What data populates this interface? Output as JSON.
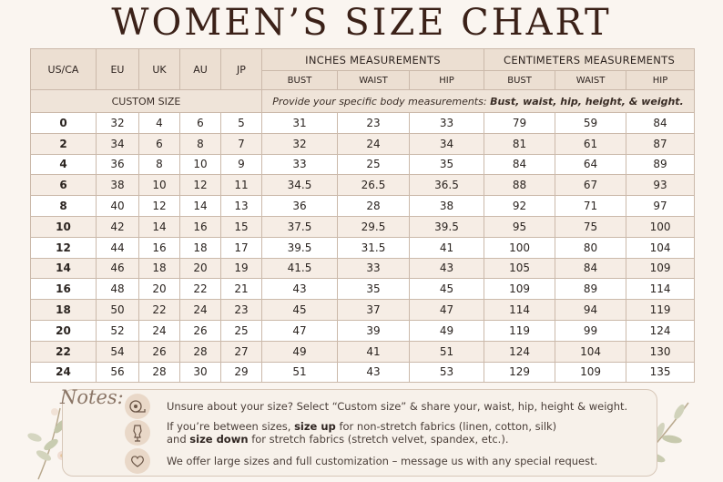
{
  "title": "WOMEN’S SIZE CHART",
  "headers": {
    "us": "US/CA",
    "eu": "EU",
    "uk": "UK",
    "au": "AU",
    "jp": "JP",
    "inches": "INCHES MEASUREMENTS",
    "cm": "CENTIMETERS MEASUREMENTS",
    "bust": "BUST",
    "waist": "WAIST",
    "hip": "HIP"
  },
  "custom": {
    "label": "CUSTOM SIZE",
    "note": "Provide your specific body measurements:",
    "note_bold": "Bust, waist, hip, height, & weight."
  },
  "rows": [
    {
      "us": "0",
      "eu": "32",
      "uk": "4",
      "au": "6",
      "jp": "5",
      "in_bust": "31",
      "in_waist": "23",
      "in_hip": "33",
      "cm_bust": "79",
      "cm_waist": "59",
      "cm_hip": "84"
    },
    {
      "us": "2",
      "eu": "34",
      "uk": "6",
      "au": "8",
      "jp": "7",
      "in_bust": "32",
      "in_waist": "24",
      "in_hip": "34",
      "cm_bust": "81",
      "cm_waist": "61",
      "cm_hip": "87"
    },
    {
      "us": "4",
      "eu": "36",
      "uk": "8",
      "au": "10",
      "jp": "9",
      "in_bust": "33",
      "in_waist": "25",
      "in_hip": "35",
      "cm_bust": "84",
      "cm_waist": "64",
      "cm_hip": "89"
    },
    {
      "us": "6",
      "eu": "38",
      "uk": "10",
      "au": "12",
      "jp": "11",
      "in_bust": "34.5",
      "in_waist": "26.5",
      "in_hip": "36.5",
      "cm_bust": "88",
      "cm_waist": "67",
      "cm_hip": "93"
    },
    {
      "us": "8",
      "eu": "40",
      "uk": "12",
      "au": "14",
      "jp": "13",
      "in_bust": "36",
      "in_waist": "28",
      "in_hip": "38",
      "cm_bust": "92",
      "cm_waist": "71",
      "cm_hip": "97"
    },
    {
      "us": "10",
      "eu": "42",
      "uk": "14",
      "au": "16",
      "jp": "15",
      "in_bust": "37.5",
      "in_waist": "29.5",
      "in_hip": "39.5",
      "cm_bust": "95",
      "cm_waist": "75",
      "cm_hip": "100"
    },
    {
      "us": "12",
      "eu": "44",
      "uk": "16",
      "au": "18",
      "jp": "17",
      "in_bust": "39.5",
      "in_waist": "31.5",
      "in_hip": "41",
      "cm_bust": "100",
      "cm_waist": "80",
      "cm_hip": "104"
    },
    {
      "us": "14",
      "eu": "46",
      "uk": "18",
      "au": "20",
      "jp": "19",
      "in_bust": "41.5",
      "in_waist": "33",
      "in_hip": "43",
      "cm_bust": "105",
      "cm_waist": "84",
      "cm_hip": "109"
    },
    {
      "us": "16",
      "eu": "48",
      "uk": "20",
      "au": "22",
      "jp": "21",
      "in_bust": "43",
      "in_waist": "35",
      "in_hip": "45",
      "cm_bust": "109",
      "cm_waist": "89",
      "cm_hip": "114"
    },
    {
      "us": "18",
      "eu": "50",
      "uk": "22",
      "au": "24",
      "jp": "23",
      "in_bust": "45",
      "in_waist": "37",
      "in_hip": "47",
      "cm_bust": "114",
      "cm_waist": "94",
      "cm_hip": "119"
    },
    {
      "us": "20",
      "eu": "52",
      "uk": "24",
      "au": "26",
      "jp": "25",
      "in_bust": "47",
      "in_waist": "39",
      "in_hip": "49",
      "cm_bust": "119",
      "cm_waist": "99",
      "cm_hip": "124"
    },
    {
      "us": "22",
      "eu": "54",
      "uk": "26",
      "au": "28",
      "jp": "27",
      "in_bust": "49",
      "in_waist": "41",
      "in_hip": "51",
      "cm_bust": "124",
      "cm_waist": "104",
      "cm_hip": "130"
    },
    {
      "us": "24",
      "eu": "56",
      "uk": "28",
      "au": "30",
      "jp": "29",
      "in_bust": "51",
      "in_waist": "43",
      "in_hip": "53",
      "cm_bust": "129",
      "cm_waist": "109",
      "cm_hip": "135"
    }
  ],
  "notes": {
    "title": "Notes:",
    "item1": "Unsure about your size? Select “Custom size” & share your, waist, hip, height & weight.",
    "item2_a": "If you’re between sizes,",
    "item2_b": "size up",
    "item2_c": "for non-stretch fabrics (linen, cotton, silk)",
    "item2_d": "and",
    "item2_e": "size down",
    "item2_f": "for stretch fabrics (stretch velvet, spandex, etc.).",
    "item3": "We offer large sizes and full customization – message us with any special request."
  },
  "colors": {
    "header_bg": "#ecdfd2",
    "stripe": "#f6ede5",
    "accent": "#e9d8c8",
    "title": "#3b2118"
  },
  "icons": [
    "measuring-tape-icon",
    "dress-form-icon",
    "heart-icon"
  ]
}
